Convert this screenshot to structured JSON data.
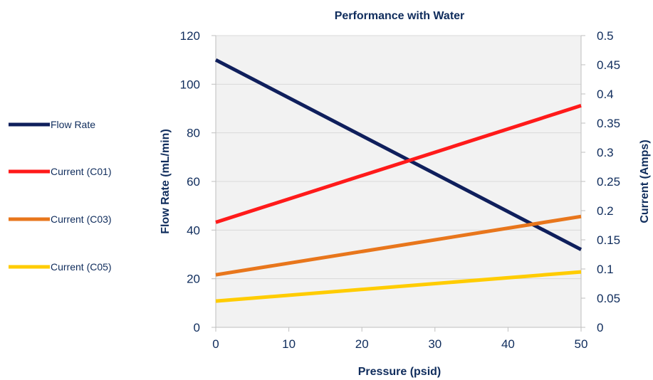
{
  "chart_data": {
    "type": "line",
    "title": "Performance with Water",
    "xlabel": "Pressure (psid)",
    "ylabel_left": "Flow Rate (mL/min)",
    "ylabel_right": "Current (Amps)",
    "x": [
      0,
      50
    ],
    "xlim": [
      0,
      50
    ],
    "x_ticks": [
      "0",
      "10",
      "20",
      "30",
      "40",
      "50"
    ],
    "ylim_left": [
      0,
      120
    ],
    "y_left_ticks": [
      "0",
      "20",
      "40",
      "60",
      "80",
      "100",
      "120"
    ],
    "ylim_right": [
      0,
      0.5
    ],
    "y_right_ticks": [
      "0",
      "0.05",
      "0.1",
      "0.15",
      "0.2",
      "0.25",
      "0.3",
      "0.35",
      "0.4",
      "0.45",
      "0.5"
    ],
    "grid": true,
    "legend_position": "left",
    "series": [
      {
        "name": "Flow Rate",
        "axis": "left",
        "color": "#0f1f5c",
        "values": [
          110,
          32
        ]
      },
      {
        "name": "Current (C01)",
        "axis": "right",
        "color": "#ff1a1a",
        "values": [
          0.18,
          0.38
        ]
      },
      {
        "name": "Current (C03)",
        "axis": "right",
        "color": "#e8761c",
        "values": [
          0.09,
          0.19
        ]
      },
      {
        "name": "Current (C05)",
        "axis": "right",
        "color": "#ffcc00",
        "values": [
          0.045,
          0.095
        ]
      }
    ],
    "colors": {
      "text": "#0f2c5c",
      "plot_background": "#f2f2f2",
      "gridline": "#d9d9d9"
    }
  }
}
